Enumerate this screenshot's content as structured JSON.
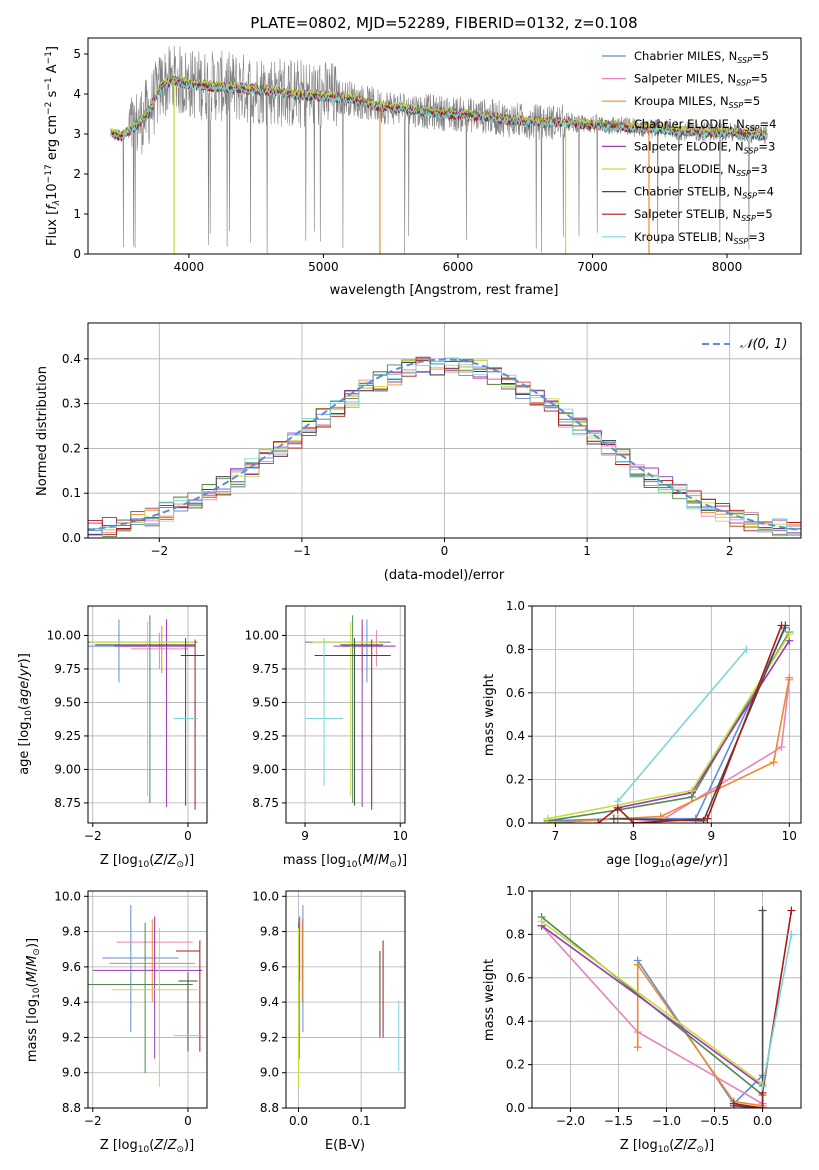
{
  "colors": {
    "ChabrierMILES": "#5b8fd8",
    "SalpeterMILES": "#e882c0",
    "KroupaMILES": "#ee8a2d",
    "ChabrierELODIE": "#4e8a4e",
    "SalpeterELODIE": "#9b3bb5",
    "KroupaELODIE": "#c7dd3c",
    "ChabrierSTELIB": "#4a4a4a",
    "SalpeterSTELIB": "#b01818",
    "KroupaSTELIB": "#7ad6dc",
    "normal": "#5b8fd8",
    "spectrum": "#808080"
  },
  "chart_data": [
    {
      "id": "spectrum",
      "type": "line",
      "title": "PLATE=0802, MJD=52289, FIBERID=0132, z=0.108",
      "xlabel": "wavelength [Angstrom, rest frame]",
      "ylabel": "Flux [fλ 10⁻¹⁷ erg cm⁻² s⁻¹ A⁻¹]",
      "xlim": [
        3250,
        8550
      ],
      "ylim": [
        0,
        5.4
      ],
      "xticks": [
        4000,
        5000,
        6000,
        7000,
        8000
      ],
      "yticks": [
        0,
        1,
        2,
        3,
        4,
        5
      ],
      "continuum": {
        "x": [
          3400,
          3500,
          3600,
          3700,
          3800,
          3900,
          4000,
          4200,
          4400,
          4600,
          4800,
          5000,
          5200,
          5400,
          5600,
          5800,
          6000,
          6200,
          6400,
          6600,
          6800,
          7000,
          7200,
          7400,
          7600,
          7800,
          8000,
          8200,
          8300
        ],
        "y": [
          3.05,
          2.95,
          3.2,
          3.55,
          4.25,
          4.35,
          4.25,
          4.2,
          4.15,
          4.1,
          4.0,
          3.95,
          3.9,
          3.7,
          3.65,
          3.55,
          3.5,
          3.45,
          3.35,
          3.3,
          3.3,
          3.25,
          3.2,
          3.15,
          3.1,
          3.05,
          3.05,
          3.0,
          2.98
        ]
      },
      "legend": [
        {
          "label": "Chabrier MILES, N_SSP=5",
          "name": "Chabrier MILES, N",
          "n": "5",
          "color_key": "ChabrierMILES"
        },
        {
          "label": "Salpeter MILES, N_SSP=5",
          "name": "Salpeter MILES, N",
          "n": "5",
          "color_key": "SalpeterMILES"
        },
        {
          "label": "Kroupa MILES, N_SSP=5",
          "name": "Kroupa MILES, N",
          "n": "5",
          "color_key": "KroupaMILES"
        },
        {
          "label": "Chabrier ELODIE, N_SSP=4",
          "name": "Chabrier ELODIE, N",
          "n": "4",
          "color_key": "ChabrierELODIE"
        },
        {
          "label": "Salpeter ELODIE, N_SSP=3",
          "name": "Salpeter ELODIE, N",
          "n": "3",
          "color_key": "SalpeterELODIE"
        },
        {
          "label": "Kroupa ELODIE, N_SSP=3",
          "name": "Kroupa ELODIE, N",
          "n": "3",
          "color_key": "KroupaELODIE"
        },
        {
          "label": "Chabrier STELIB, N_SSP=4",
          "name": "Chabrier STELIB, N",
          "n": "4",
          "color_key": "ChabrierSTELIB"
        },
        {
          "label": "Salpeter STELIB, N_SSP=5",
          "name": "Salpeter STELIB, N",
          "n": "5",
          "color_key": "SalpeterSTELIB"
        },
        {
          "label": "Kroupa STELIB, N_SSP=3",
          "name": "Kroupa STELIB, N",
          "n": "3",
          "color_key": "KroupaSTELIB"
        }
      ],
      "legend_position": "upper-right"
    },
    {
      "id": "residuals",
      "type": "histogram",
      "xlabel": "(data-model)/error",
      "ylabel": "Normed distribution",
      "xlim": [
        -2.5,
        2.5
      ],
      "ylim": [
        0,
        0.48
      ],
      "xticks": [
        -2,
        -1,
        0,
        1,
        2
      ],
      "yticks": [
        0.0,
        0.1,
        0.2,
        0.3,
        0.4
      ],
      "grid": true,
      "bin_width": 0.1,
      "bin_start": -2.5,
      "reference_curve": {
        "label": "𝒩(0, 1)",
        "mean": 0,
        "sigma": 1
      },
      "legend_position": "upper-right"
    },
    {
      "id": "age-vs-Z",
      "type": "errorbar",
      "xlabel": "Z [log10(Z/Z⊙)]",
      "ylabel": "age [log10(age/yr)]",
      "xlim": [
        -2.1,
        0.4
      ],
      "ylim": [
        8.6,
        10.22
      ],
      "xticks": [
        -2,
        0
      ],
      "yticks": [
        8.75,
        9.0,
        9.25,
        9.5,
        9.75,
        10.0
      ],
      "grid": true,
      "points": [
        {
          "key": "ChabrierMILES",
          "x": -1.45,
          "y": 9.92,
          "xerr": [
            0.9,
            0.9
          ],
          "yerr": [
            0.27,
            0.2
          ]
        },
        {
          "key": "SalpeterMILES",
          "x": -0.6,
          "y": 9.9,
          "xerr": [
            0.6,
            0.6
          ],
          "yerr": [
            0.15,
            0.12
          ]
        },
        {
          "key": "KroupaMILES",
          "x": -0.55,
          "y": 9.92,
          "xerr": [
            0.8,
            0.7
          ],
          "yerr": [
            0.2,
            0.15
          ]
        },
        {
          "key": "ChabrierELODIE",
          "x": -0.8,
          "y": 9.95,
          "xerr": [
            1.3,
            1.0
          ],
          "yerr": [
            1.2,
            0.2
          ]
        },
        {
          "key": "SalpeterELODIE",
          "x": -0.45,
          "y": 9.92,
          "xerr": [
            1.1,
            0.6
          ],
          "yerr": [
            1.2,
            0.2
          ]
        },
        {
          "key": "KroupaELODIE",
          "x": -0.85,
          "y": 9.95,
          "xerr": [
            1.2,
            1.0
          ],
          "yerr": [
            1.15,
            0.15
          ]
        },
        {
          "key": "ChabrierSTELIB",
          "x": -0.05,
          "y": 9.93,
          "xerr": [
            1.9,
            0.2
          ],
          "yerr": [
            1.2,
            0.05
          ]
        },
        {
          "key": "SalpeterSTELIB",
          "x": 0.15,
          "y": 9.85,
          "xerr": [
            0.3,
            0.2
          ],
          "yerr": [
            1.15,
            0.12
          ]
        },
        {
          "key": "KroupaSTELIB",
          "x": 0.0,
          "y": 9.38,
          "xerr": [
            0.3,
            0.2
          ],
          "yerr": [
            0.0,
            0.0
          ]
        }
      ]
    },
    {
      "id": "age-vs-mass",
      "type": "errorbar",
      "xlabel": "mass [log10(M/M⊙)]",
      "ylabel": "",
      "xlim": [
        8.8,
        10.05
      ],
      "ylim": [
        8.6,
        10.22
      ],
      "xticks": [
        9,
        10
      ],
      "yticks": [
        8.75,
        9.0,
        9.25,
        9.5,
        9.75,
        10.0
      ],
      "grid": true,
      "points": [
        {
          "key": "ChabrierMILES",
          "x": 9.65,
          "y": 9.92,
          "xerr": [
            0.25,
            0.15
          ],
          "yerr": [
            0.27,
            0.2
          ]
        },
        {
          "key": "SalpeterMILES",
          "x": 9.75,
          "y": 9.92,
          "xerr": [
            0.2,
            0.2
          ],
          "yerr": [
            0.15,
            0.12
          ]
        },
        {
          "key": "KroupaMILES",
          "x": 9.6,
          "y": 9.92,
          "xerr": [
            0.2,
            0.2
          ],
          "yerr": [
            0.2,
            0.15
          ]
        },
        {
          "key": "ChabrierELODIE",
          "x": 9.5,
          "y": 9.95,
          "xerr": [
            0.5,
            0.4
          ],
          "yerr": [
            1.2,
            0.2
          ]
        },
        {
          "key": "SalpeterELODIE",
          "x": 9.6,
          "y": 9.92,
          "xerr": [
            0.3,
            0.35
          ],
          "yerr": [
            1.2,
            0.2
          ]
        },
        {
          "key": "KroupaELODIE",
          "x": 9.48,
          "y": 9.95,
          "xerr": [
            0.4,
            0.3
          ],
          "yerr": [
            1.15,
            0.15
          ]
        },
        {
          "key": "ChabrierSTELIB",
          "x": 9.52,
          "y": 9.93,
          "xerr": [
            0.15,
            0.3
          ],
          "yerr": [
            1.2,
            0.05
          ]
        },
        {
          "key": "SalpeterSTELIB",
          "x": 9.7,
          "y": 9.85,
          "xerr": [
            0.6,
            0.2
          ],
          "yerr": [
            1.15,
            0.12
          ]
        },
        {
          "key": "KroupaSTELIB",
          "x": 9.2,
          "y": 9.38,
          "xerr": [
            0.2,
            0.2
          ],
          "yerr": [
            0.5,
            0.6
          ]
        }
      ]
    },
    {
      "id": "mass-weight-vs-age",
      "type": "line",
      "xlabel": "age [log10(age/yr)]",
      "ylabel": "mass weight",
      "xlim": [
        6.7,
        10.15
      ],
      "ylim": [
        0,
        1.0
      ],
      "xticks": [
        7,
        8,
        9,
        10
      ],
      "yticks": [
        0.0,
        0.2,
        0.4,
        0.6,
        0.8,
        1.0
      ],
      "grid": true,
      "series": [
        {
          "key": "ChabrierMILES",
          "x": [
            6.9,
            7.8,
            8.35,
            8.8,
            9.95
          ],
          "y": [
            0.01,
            0.02,
            0.02,
            0.02,
            0.9
          ]
        },
        {
          "key": "SalpeterMILES",
          "x": [
            6.9,
            7.8,
            8.35,
            9.9,
            10.0
          ],
          "y": [
            0.0,
            0.02,
            0.01,
            0.35,
            0.66
          ]
        },
        {
          "key": "KroupaMILES",
          "x": [
            6.9,
            7.8,
            8.35,
            9.8,
            10.0
          ],
          "y": [
            0.0,
            0.02,
            0.03,
            0.28,
            0.67
          ]
        },
        {
          "key": "ChabrierELODIE",
          "x": [
            6.9,
            7.8,
            8.75,
            10.0
          ],
          "y": [
            0.01,
            0.06,
            0.12,
            0.88
          ]
        },
        {
          "key": "SalpeterELODIE",
          "x": [
            7.8,
            8.75,
            10.0
          ],
          "y": [
            0.07,
            0.14,
            0.84
          ]
        },
        {
          "key": "KroupaELODIE",
          "x": [
            6.9,
            8.75,
            10.0
          ],
          "y": [
            0.02,
            0.15,
            0.87
          ]
        },
        {
          "key": "ChabrierSTELIB",
          "x": [
            7.75,
            8.9,
            9.95
          ],
          "y": [
            0.02,
            0.01,
            0.91
          ]
        },
        {
          "key": "SalpeterSTELIB",
          "x": [
            7.55,
            7.8,
            8.0,
            8.95,
            9.9
          ],
          "y": [
            0.0,
            0.07,
            0.0,
            0.02,
            0.91
          ]
        },
        {
          "key": "KroupaSTELIB",
          "x": [
            7.8,
            9.45
          ],
          "y": [
            0.1,
            0.8
          ]
        }
      ]
    },
    {
      "id": "mass-vs-Z",
      "type": "errorbar",
      "xlabel": "Z [log10(Z/Z⊙)]",
      "ylabel": "mass [log10(M/M⊙)]",
      "xlim": [
        -2.1,
        0.4
      ],
      "ylim": [
        8.8,
        10.03
      ],
      "xticks": [
        -2,
        0
      ],
      "yticks": [
        8.8,
        9.0,
        9.2,
        9.4,
        9.6,
        9.8,
        10.0
      ],
      "grid": true,
      "points": [
        {
          "key": "ChabrierMILES",
          "x": -1.2,
          "y": 9.65,
          "xerr": [
            0.6,
            1.0
          ],
          "yerr": [
            0.42,
            0.3
          ]
        },
        {
          "key": "SalpeterMILES",
          "x": -0.7,
          "y": 9.74,
          "xerr": [
            0.8,
            0.8
          ],
          "yerr": [
            0.22,
            0.15
          ]
        },
        {
          "key": "KroupaMILES",
          "x": -0.75,
          "y": 9.62,
          "xerr": [
            0.9,
            0.9
          ],
          "yerr": [
            0.22,
            0.25
          ]
        },
        {
          "key": "ChabrierELODIE",
          "x": -0.9,
          "y": 9.5,
          "xerr": [
            1.2,
            1.0
          ],
          "yerr": [
            0.5,
            0.35
          ]
        },
        {
          "key": "SalpeterELODIE",
          "x": -0.7,
          "y": 9.58,
          "xerr": [
            1.3,
            1.0
          ],
          "yerr": [
            0.5,
            0.3
          ]
        },
        {
          "key": "KroupaELODIE",
          "x": -0.6,
          "y": 9.47,
          "xerr": [
            1.0,
            0.8
          ],
          "yerr": [
            0.55,
            0.35
          ]
        },
        {
          "key": "ChabrierSTELIB",
          "x": 0.0,
          "y": 9.52,
          "xerr": [
            0.2,
            0.2
          ],
          "yerr": [
            0.4,
            0.05
          ]
        },
        {
          "key": "SalpeterSTELIB",
          "x": 0.25,
          "y": 9.69,
          "xerr": [
            0.5,
            0.0
          ],
          "yerr": [
            0.57,
            0.06
          ]
        },
        {
          "key": "KroupaSTELIB",
          "x": 0.0,
          "y": 9.21,
          "xerr": [
            0.3,
            0.3
          ],
          "yerr": [
            0.0,
            0.0
          ]
        }
      ]
    },
    {
      "id": "mass-vs-EBV",
      "type": "errorbar",
      "xlabel": "E(B-V)",
      "ylabel": "",
      "xlim": [
        -0.02,
        0.17
      ],
      "ylim": [
        8.8,
        10.03
      ],
      "xticks": [
        0.0,
        0.1
      ],
      "yticks": [
        8.8,
        9.0,
        9.2,
        9.4,
        9.6,
        9.8,
        10.0
      ],
      "grid": true,
      "points": [
        {
          "key": "ChabrierMILES",
          "x": 0.007,
          "y": 9.65,
          "xerr": [
            0.0,
            0.0
          ],
          "yerr": [
            0.42,
            0.3
          ]
        },
        {
          "key": "SalpeterMILES",
          "x": 0.002,
          "y": 9.74,
          "xerr": [
            0.0,
            0.0
          ],
          "yerr": [
            0.22,
            0.15
          ]
        },
        {
          "key": "KroupaMILES",
          "x": 0.006,
          "y": 9.62,
          "xerr": [
            0.0,
            0.0
          ],
          "yerr": [
            0.22,
            0.25
          ]
        },
        {
          "key": "ChabrierELODIE",
          "x": 0.0,
          "y": 9.5,
          "xerr": [
            0.0,
            0.0
          ],
          "yerr": [
            0.5,
            0.35
          ]
        },
        {
          "key": "SalpeterELODIE",
          "x": 0.001,
          "y": 9.58,
          "xerr": [
            0.0,
            0.0
          ],
          "yerr": [
            0.5,
            0.3
          ]
        },
        {
          "key": "KroupaELODIE",
          "x": 0.0,
          "y": 9.47,
          "xerr": [
            0.0,
            0.0
          ],
          "yerr": [
            0.55,
            0.35
          ]
        },
        {
          "key": "ChabrierSTELIB",
          "x": 0.13,
          "y": 9.45,
          "xerr": [
            0.0,
            0.0
          ],
          "yerr": [
            0.25,
            0.24
          ]
        },
        {
          "key": "SalpeterSTELIB",
          "x": 0.135,
          "y": 9.5,
          "xerr": [
            0.0,
            0.0
          ],
          "yerr": [
            0.3,
            0.25
          ]
        },
        {
          "key": "KroupaSTELIB",
          "x": 0.16,
          "y": 9.21,
          "xerr": [
            0.0,
            0.0
          ],
          "yerr": [
            0.2,
            0.2
          ]
        }
      ]
    },
    {
      "id": "mass-weight-vs-Z",
      "type": "line",
      "xlabel": "Z [log10(Z/Z⊙)]",
      "ylabel": "mass weight",
      "xlim": [
        -2.4,
        0.4
      ],
      "ylim": [
        0,
        1.0
      ],
      "xticks": [
        -2.0,
        -1.5,
        -1.0,
        -0.5,
        0.0
      ],
      "yticks": [
        0.0,
        0.2,
        0.4,
        0.6,
        0.8,
        1.0
      ],
      "grid": true,
      "series": [
        {
          "key": "ChabrierMILES",
          "x": [
            -1.3,
            -0.3,
            0.0
          ],
          "y": [
            0.68,
            0.02,
            0.15
          ]
        },
        {
          "key": "SalpeterMILES",
          "x": [
            -2.3,
            -1.3,
            0.0
          ],
          "y": [
            0.84,
            0.35,
            0.02
          ]
        },
        {
          "key": "KroupaMILES",
          "x": [
            -1.3,
            -1.3,
            -0.3,
            0.0
          ],
          "y": [
            0.28,
            0.66,
            0.03,
            0.01
          ]
        },
        {
          "key": "ChabrierELODIE",
          "x": [
            -2.3,
            0.0
          ],
          "y": [
            0.88,
            0.06
          ]
        },
        {
          "key": "SalpeterELODIE",
          "x": [
            -2.3,
            0.0
          ],
          "y": [
            0.84,
            0.1
          ]
        },
        {
          "key": "KroupaELODIE",
          "x": [
            -2.3,
            0.0
          ],
          "y": [
            0.86,
            0.11
          ]
        },
        {
          "key": "ChabrierSTELIB",
          "x": [
            -0.3,
            0.0,
            0.0
          ],
          "y": [
            0.01,
            0.0,
            0.91
          ]
        },
        {
          "key": "SalpeterSTELIB",
          "x": [
            -0.3,
            0.0,
            0.0,
            0.3
          ],
          "y": [
            0.02,
            0.0,
            0.07,
            0.91
          ]
        },
        {
          "key": "KroupaSTELIB",
          "x": [
            0.0,
            0.3
          ],
          "y": [
            0.1,
            0.8
          ]
        }
      ]
    }
  ]
}
